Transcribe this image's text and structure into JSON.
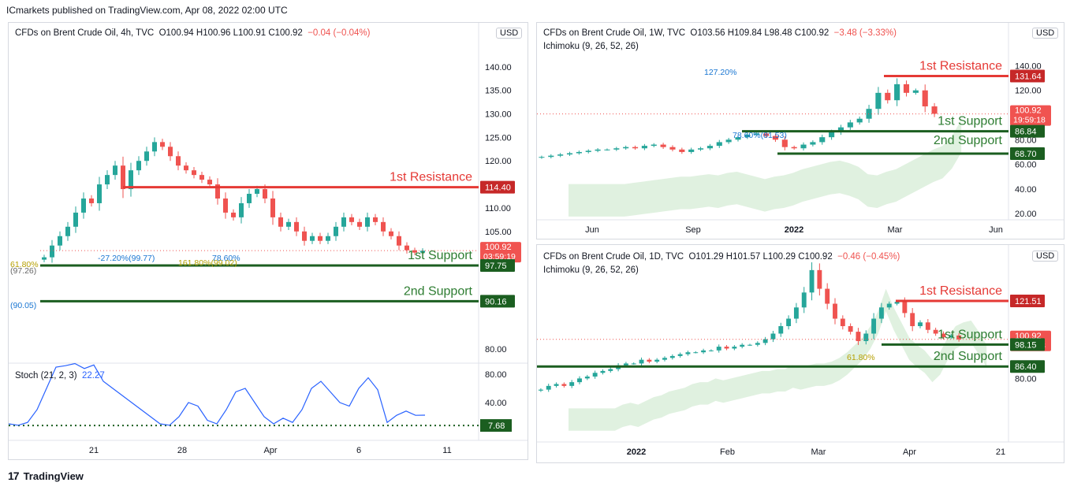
{
  "header": {
    "published": "ICmarkets published on TradingView.com, Apr 08, 2022 02:00 UTC"
  },
  "footer": {
    "brand": "TradingView"
  },
  "colors": {
    "up": "#26a69a",
    "down": "#ef5350",
    "resistance": "#c62828",
    "support": "#1b5e20",
    "support_text": "#2e7d32",
    "fib": "#1976d2"
  },
  "panels": {
    "h4": {
      "symbol": "CFDs on Brent Crude Oil, 4h, TVC",
      "ohlc": "O100.94  H100.96  L100.91  C100.92",
      "change": "−0.04 (−0.04%)",
      "currency": "USD",
      "stoch_label": "Stoch (21, 2, 3)",
      "stoch_value": "22.27"
    },
    "w1": {
      "symbol": "CFDs on Brent Crude Oil, 1W, TVC",
      "ohlc": "O103.56  H109.84  L98.48  C100.92",
      "change": "−3.48 (−3.33%)",
      "indicator": "Ichimoku (9, 26, 52, 26)",
      "currency": "USD"
    },
    "d1": {
      "symbol": "CFDs on Brent Crude Oil, 1D, TVC",
      "ohlc": "O101.29  H101.57  L100.29  C100.92",
      "change": "−0.46 (−0.45%)",
      "indicator": "Ichimoku (9, 26, 52, 26)",
      "currency": "USD"
    }
  },
  "chart_data": [
    {
      "panel": "h4",
      "type": "candlestick",
      "title": "CFDs on Brent Crude Oil, 4h, TVC",
      "x_tick_labels": [
        "21",
        "28",
        "Apr",
        "6",
        "11"
      ],
      "y_tick_labels": [
        "140.00",
        "135.00",
        "130.00",
        "125.00",
        "120.00",
        "115.00",
        "110.00",
        "105.00",
        "100.00",
        "80.00"
      ],
      "ylim": [
        79,
        146
      ],
      "close_series": [
        99.5,
        102,
        104,
        106,
        109,
        112,
        111,
        115,
        117,
        119,
        114,
        118,
        120,
        122,
        124,
        123,
        121,
        119,
        118,
        117,
        116,
        115,
        112,
        109,
        108,
        111,
        113,
        114,
        112,
        108,
        106,
        107,
        105,
        103,
        104,
        103,
        104,
        106,
        108,
        107,
        106,
        108,
        107,
        105,
        104,
        102,
        101,
        100.5,
        100.9
      ],
      "levels": [
        {
          "label": "1st Resistance",
          "value": 114.4,
          "price_label": "114.40"
        },
        {
          "label": "1st Support",
          "value": 97.75,
          "price_label": "97.75"
        },
        {
          "label": "2nd Support",
          "value": 90.16,
          "price_label": "90.16"
        }
      ],
      "current_price": "100.92",
      "countdown": "03:59:19",
      "annotations": [
        "-27.20%(99.77)",
        "78.60%",
        "161.80%(99.02)",
        "61.80%",
        "(97.26)",
        "(90.05)"
      ],
      "stoch": {
        "label": "Stoch (21, 2, 3)",
        "value": "22.27",
        "y_tick_labels": [
          "80.00",
          "40.00"
        ],
        "ylim": [
          0,
          100
        ],
        "line_level": 7.68,
        "line_level_label": "7.68",
        "values": [
          10,
          8,
          12,
          30,
          60,
          90,
          92,
          95,
          88,
          93,
          70,
          60,
          50,
          40,
          30,
          20,
          10,
          8,
          20,
          40,
          35,
          15,
          10,
          30,
          55,
          60,
          40,
          20,
          10,
          18,
          12,
          30,
          60,
          70,
          55,
          40,
          35,
          60,
          75,
          58,
          12,
          22,
          28,
          22,
          22.27
        ]
      }
    },
    {
      "panel": "w1",
      "type": "candlestick",
      "title": "CFDs on Brent Crude Oil, 1W, TVC",
      "x_tick_labels": [
        "Jun",
        "Sep",
        "2022",
        "Mar",
        "Jun"
      ],
      "y_tick_labels": [
        "140.00",
        "120.00",
        "100.00",
        "80.00",
        "60.00",
        "40.00",
        "20.00"
      ],
      "ylim": [
        15,
        162
      ],
      "close_series": [
        66,
        67,
        68,
        69,
        70,
        71,
        72,
        72,
        73,
        74,
        73,
        75,
        76,
        74,
        72,
        70,
        72,
        73,
        75,
        78,
        80,
        82,
        84,
        85,
        83,
        80,
        74,
        73,
        76,
        78,
        82,
        86,
        90,
        94,
        97,
        105,
        118,
        112,
        125,
        118,
        120,
        107,
        101
      ],
      "levels": [
        {
          "label": "1st Resistance",
          "value": 131.64,
          "price_label": "131.64"
        },
        {
          "label": "1st Support",
          "value": 86.84,
          "price_label": "86.84"
        },
        {
          "label": "2nd Support",
          "value": 68.7,
          "price_label": "68.70"
        }
      ],
      "current_price": "100.92",
      "countdown": "19:59:18",
      "annotations": [
        "127.20%",
        "78.60%(81.53)"
      ]
    },
    {
      "panel": "d1",
      "type": "candlestick",
      "title": "CFDs on Brent Crude Oil, 1D, TVC",
      "x_tick_labels": [
        "2022",
        "Feb",
        "Mar",
        "Apr",
        "21"
      ],
      "y_tick_labels": [
        "80.00"
      ],
      "ylim": [
        46,
        143
      ],
      "close_series": [
        74,
        76,
        77,
        76,
        78,
        80,
        81,
        83,
        84,
        85,
        87,
        88,
        88,
        90,
        89,
        90,
        91,
        92,
        93,
        94,
        94,
        95,
        95,
        97,
        96,
        97,
        98,
        98,
        99,
        101,
        104,
        108,
        112,
        118,
        126,
        138,
        128,
        120,
        112,
        108,
        105,
        100,
        104,
        112,
        118,
        120,
        121,
        115,
        108,
        110,
        106,
        104,
        102,
        103,
        100.9
      ],
      "levels": [
        {
          "label": "1st Resistance",
          "value": 121.51,
          "price_label": "121.51"
        },
        {
          "label": "1st Support",
          "value": 98.15,
          "price_label": "98.15"
        },
        {
          "label": "2nd Support",
          "value": 86.4,
          "price_label": "86.40"
        }
      ],
      "current_price": "100.92",
      "countdown": "19:59:18",
      "annotations": [
        "61.80%"
      ]
    }
  ]
}
